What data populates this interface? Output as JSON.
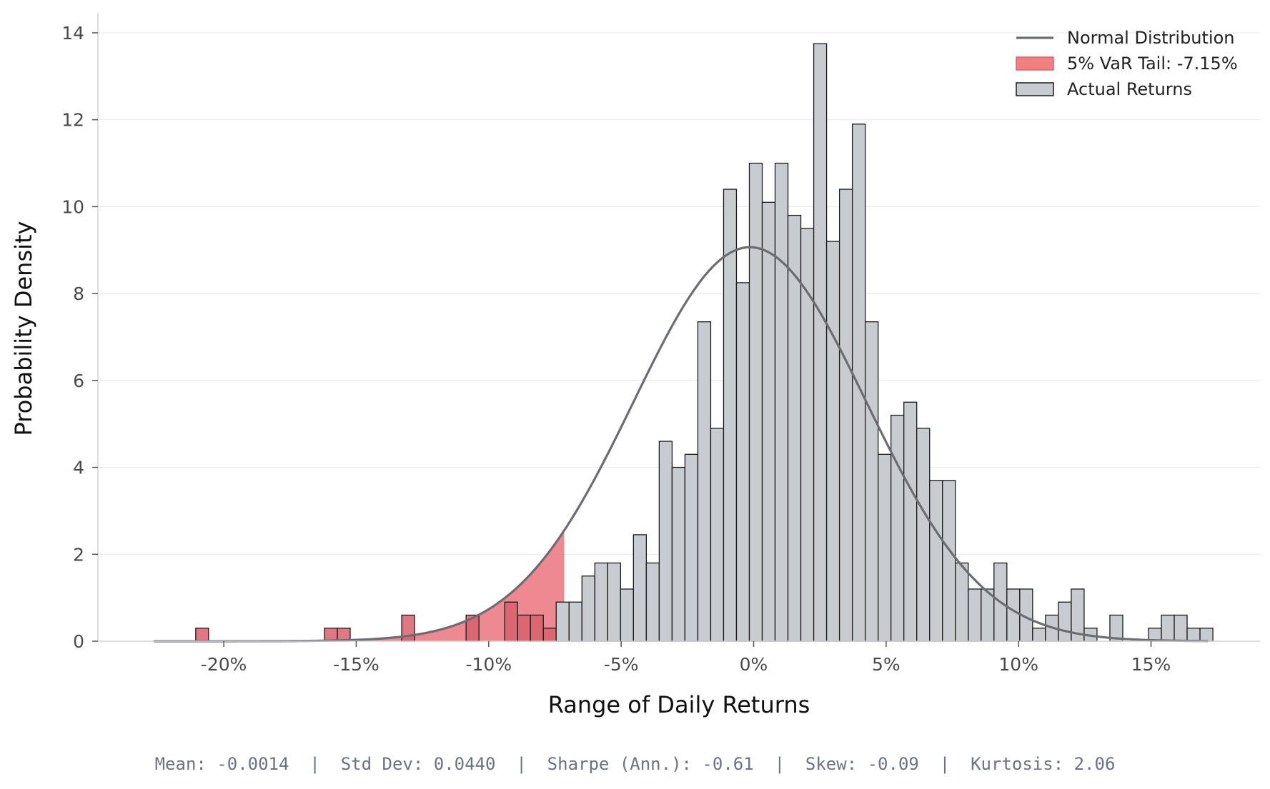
{
  "chart_data": {
    "type": "histogram",
    "xlabel": "Range of Daily Returns",
    "ylabel": "Probability Density",
    "xlim": [
      -0.24,
      0.2
    ],
    "ylim": [
      0,
      14.5
    ],
    "x_ticks": [
      {
        "value": -0.2,
        "label": "-20%"
      },
      {
        "value": -0.15,
        "label": "-15%"
      },
      {
        "value": -0.1,
        "label": "-10%"
      },
      {
        "value": -0.05,
        "label": "-5%"
      },
      {
        "value": 0.0,
        "label": "0%"
      },
      {
        "value": 0.05,
        "label": "5%"
      },
      {
        "value": 0.1,
        "label": "10%"
      },
      {
        "value": 0.15,
        "label": "15%"
      }
    ],
    "y_ticks": [
      {
        "value": 0,
        "label": "0"
      },
      {
        "value": 2,
        "label": "2"
      },
      {
        "value": 4,
        "label": "4"
      },
      {
        "value": 6,
        "label": "6"
      },
      {
        "value": 8,
        "label": "8"
      },
      {
        "value": 10,
        "label": "10"
      },
      {
        "value": 12,
        "label": "12"
      },
      {
        "value": 14,
        "label": "14"
      }
    ],
    "grid": "horizontal",
    "legend_position": "top-right",
    "legend": [
      {
        "label": "Normal Distribution",
        "kind": "line",
        "color": "#6b6d72"
      },
      {
        "label": "5% VaR Tail: -7.15%",
        "kind": "patch",
        "color": "#f08080"
      },
      {
        "label": "Actual Returns",
        "kind": "patch",
        "color": "#c8cbd0"
      }
    ],
    "var_threshold": -0.0715,
    "bin_start": -0.2106,
    "bin_width": 0.00486,
    "counts": [
      0.3,
      0,
      0,
      0,
      0,
      0,
      0,
      0,
      0,
      0,
      0.3,
      0.3,
      0,
      0,
      0,
      0,
      0.6,
      0,
      0,
      0,
      0,
      0.6,
      0,
      0,
      0.9,
      0.6,
      0.6,
      0.3,
      0.9,
      0.9,
      1.5,
      1.8,
      1.8,
      1.2,
      2.45,
      1.8,
      4.6,
      4.0,
      4.3,
      7.35,
      4.9,
      10.4,
      8.25,
      11.0,
      10.1,
      11.0,
      9.8,
      9.5,
      13.75,
      9.2,
      10.4,
      11.9,
      7.35,
      4.3,
      5.2,
      5.5,
      4.9,
      3.7,
      3.7,
      1.8,
      1.2,
      1.2,
      1.8,
      1.2,
      1.2,
      0.3,
      0.6,
      0.9,
      1.2,
      0.3,
      0,
      0.6,
      0,
      0,
      0.3,
      0.6,
      0.6,
      0.3,
      0.3
    ],
    "normal": {
      "mean": -0.0014,
      "std": 0.044,
      "x_range": [
        -0.2265,
        0.1715
      ]
    },
    "colors": {
      "bar": "#c8cbd0",
      "bar_edge": "#1a1a1a",
      "tail_fill": "#e8606c",
      "tail_bar": "#d9606d",
      "curve": "#6b6d72",
      "grid": "#ebebeb"
    }
  },
  "stats": {
    "line": "Mean: -0.0014  |  Std Dev: 0.0440  |  Sharpe (Ann.): -0.61  |  Skew: -0.09  |  Kurtosis: 2.06"
  }
}
